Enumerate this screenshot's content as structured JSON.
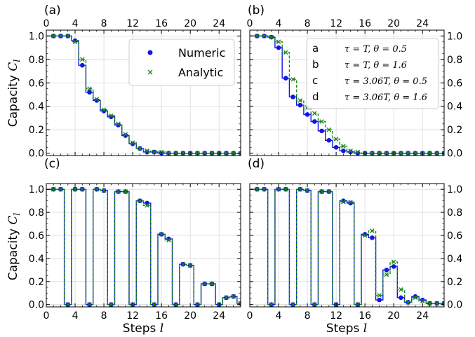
{
  "chart_data": {
    "type": "line",
    "x_label": "Steps",
    "x_label_var": "l",
    "y_label": "Capacity",
    "y_label_var": "C",
    "y_label_sub": "l",
    "xlim": [
      0,
      27
    ],
    "ylim": [
      -0.02,
      1.05
    ],
    "x_ticks": [
      0,
      4,
      8,
      12,
      16,
      20,
      24
    ],
    "y_ticks": [
      0.0,
      0.2,
      0.4,
      0.6,
      0.8,
      1.0
    ],
    "grid": true,
    "colors": {
      "numeric": "#1414e6",
      "analytic": "#1a8a1a"
    },
    "legend_markers": [
      {
        "name": "Numeric",
        "marker": "dot"
      },
      {
        "name": "Analytic",
        "marker": "x"
      }
    ],
    "legend_configs": [
      {
        "key": "a",
        "desc": "τ = T, θ = 0.5"
      },
      {
        "key": "b",
        "desc": "τ = T, θ = 1.6"
      },
      {
        "key": "c",
        "desc": "τ = 3.06T, θ = 0.5"
      },
      {
        "key": "d",
        "desc": "τ = 3.06T, θ = 1.6"
      }
    ],
    "panels": [
      {
        "label": "(a)",
        "numeric": [
          1.0,
          1.0,
          1.0,
          0.96,
          0.75,
          0.52,
          0.45,
          0.36,
          0.31,
          0.24,
          0.15,
          0.08,
          0.04,
          0.01,
          0.01,
          0.0,
          0.0,
          0.0,
          0.0,
          0.0,
          0.0,
          0.0,
          0.0,
          0.0,
          0.0,
          0.0,
          0.0
        ],
        "analytic": [
          1.0,
          1.0,
          1.0,
          0.95,
          0.8,
          0.55,
          0.46,
          0.37,
          0.32,
          0.25,
          0.16,
          0.09,
          0.04,
          0.02,
          0.01,
          0.01,
          0.0,
          0.0,
          0.0,
          0.0,
          0.0,
          0.0,
          0.0,
          0.0,
          0.0,
          0.0,
          0.0
        ]
      },
      {
        "label": "(b)",
        "numeric": [
          1.0,
          1.0,
          0.99,
          0.9,
          0.64,
          0.48,
          0.41,
          0.33,
          0.27,
          0.19,
          0.11,
          0.05,
          0.02,
          0.01,
          0.0,
          0.0,
          0.0,
          0.0,
          0.0,
          0.0,
          0.0,
          0.0,
          0.0,
          0.0,
          0.0,
          0.0,
          0.0
        ],
        "analytic": [
          1.0,
          1.0,
          0.99,
          0.95,
          0.86,
          0.63,
          0.45,
          0.39,
          0.34,
          0.27,
          0.2,
          0.12,
          0.06,
          0.02,
          0.01,
          0.0,
          0.0,
          0.0,
          0.0,
          0.0,
          0.0,
          0.0,
          0.0,
          0.0,
          0.0,
          0.0,
          0.0
        ]
      },
      {
        "label": "(c)",
        "numeric": [
          1.0,
          1.0,
          0.0,
          1.0,
          1.0,
          0.0,
          1.0,
          0.99,
          0.0,
          0.98,
          0.98,
          0.0,
          0.9,
          0.88,
          0.0,
          0.61,
          0.57,
          0.0,
          0.35,
          0.34,
          0.0,
          0.18,
          0.18,
          0.0,
          0.06,
          0.07,
          0.01
        ],
        "analytic": [
          1.0,
          1.0,
          0.0,
          1.0,
          1.0,
          0.0,
          1.0,
          0.99,
          0.0,
          0.98,
          0.98,
          0.0,
          0.9,
          0.86,
          0.0,
          0.61,
          0.56,
          0.0,
          0.35,
          0.34,
          0.0,
          0.18,
          0.18,
          0.0,
          0.06,
          0.07,
          0.01
        ]
      },
      {
        "label": "(d)",
        "numeric": [
          1.0,
          1.0,
          0.0,
          1.0,
          1.0,
          0.0,
          1.0,
          0.99,
          0.0,
          0.98,
          0.98,
          0.0,
          0.9,
          0.88,
          0.0,
          0.61,
          0.58,
          0.04,
          0.3,
          0.33,
          0.06,
          0.02,
          0.07,
          0.04,
          0.01,
          0.01,
          0.01
        ],
        "analytic": [
          1.0,
          1.0,
          0.0,
          1.0,
          1.0,
          0.0,
          1.0,
          0.99,
          0.0,
          0.98,
          0.98,
          0.0,
          0.89,
          0.89,
          0.0,
          0.6,
          0.64,
          0.08,
          0.26,
          0.37,
          0.13,
          0.02,
          0.06,
          0.03,
          0.01,
          0.01,
          0.01
        ]
      }
    ]
  }
}
